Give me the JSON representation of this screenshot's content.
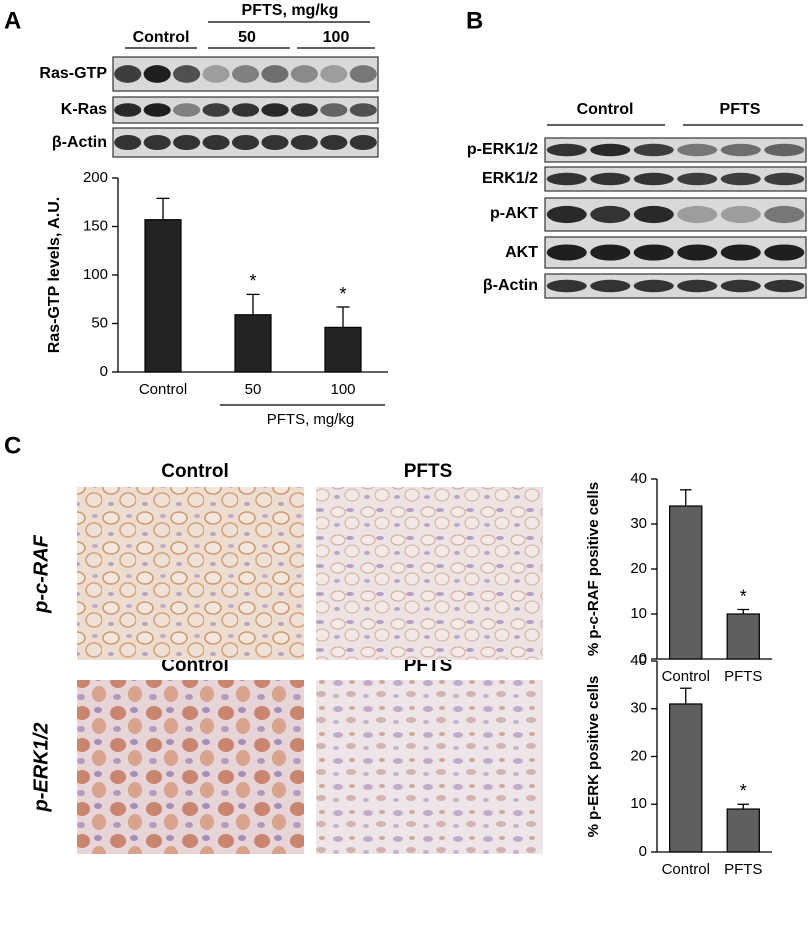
{
  "panel_labels": [
    "A",
    "B",
    "C"
  ],
  "blot_a": {
    "group_label": "PFTS, mg/kg",
    "groups": [
      "Control",
      "50",
      "100"
    ],
    "rows": [
      "Ras-GTP",
      "K-Ras",
      "β-Actin"
    ]
  },
  "blot_b": {
    "groups": [
      "Control",
      "PFTS"
    ],
    "rows": [
      "p-ERK1/2",
      "ERK1/2",
      "p-AKT",
      "AKT",
      "β-Actin"
    ]
  },
  "ihc": {
    "rows": [
      {
        "label": "p-c-RAF",
        "columns": [
          "Control",
          "PFTS"
        ]
      },
      {
        "label": "p-ERK1/2",
        "columns": [
          "Control",
          "PFTS"
        ]
      }
    ]
  },
  "chart_data": [
    {
      "type": "bar",
      "y_label": "Ras-GTP levels, A.U.",
      "categories": [
        "Control",
        "50",
        "100"
      ],
      "group_label": "PFTS, mg/kg",
      "values": [
        157,
        59,
        46
      ],
      "errors": [
        22,
        21,
        21
      ],
      "annotations": [
        null,
        "*",
        "*"
      ],
      "color": "#232323",
      "ylim": [
        0,
        200
      ],
      "yticks": [
        0,
        50,
        100,
        150,
        200
      ]
    },
    {
      "type": "bar",
      "y_label": "% p-c-RAF positive cells",
      "categories": [
        "Control",
        "PFTS"
      ],
      "values": [
        34,
        10
      ],
      "errors": [
        3.6,
        1
      ],
      "annotations": [
        null,
        "*"
      ],
      "color": "#5f5f5f",
      "ylim": [
        0,
        40
      ],
      "yticks": [
        0,
        10,
        20,
        30,
        40
      ]
    },
    {
      "type": "bar",
      "y_label": "% p-ERK positive cells",
      "categories": [
        "Control",
        "PFTS"
      ],
      "values": [
        31,
        9
      ],
      "errors": [
        3.3,
        1
      ],
      "annotations": [
        null,
        "*"
      ],
      "color": "#5f5f5f",
      "ylim": [
        0,
        40
      ],
      "yticks": [
        0,
        10,
        20,
        30,
        40
      ]
    }
  ]
}
